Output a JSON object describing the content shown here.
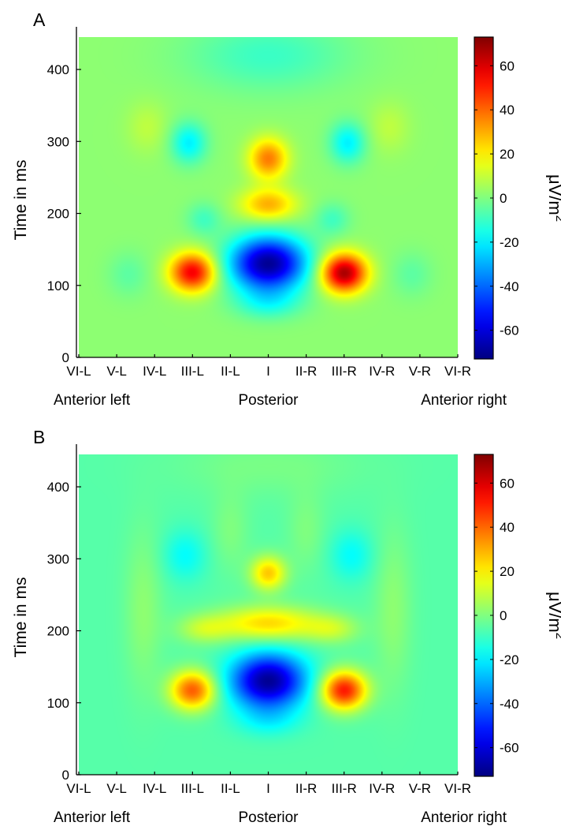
{
  "chart_data": [
    {
      "type": "heatmap",
      "panel_label": "A",
      "ylabel": "Time in ms",
      "x_categories": [
        "VI-L",
        "V-L",
        "IV-L",
        "III-L",
        "II-L",
        "I",
        "II-R",
        "III-R",
        "IV-R",
        "V-R",
        "VI-R"
      ],
      "x_groups": [
        "Anterior left",
        "Posterior",
        "Anterior right"
      ],
      "yticks": [
        0,
        100,
        200,
        300,
        400
      ],
      "ylim": [
        0,
        445
      ],
      "colorbar": {
        "range": [
          -73,
          73
        ],
        "ticks": [
          -60,
          -40,
          -20,
          0,
          20,
          40,
          60
        ],
        "tick_labels": [
          "-60",
          "-40",
          "-20",
          "0",
          "20",
          "40",
          "60"
        ],
        "label_prefix": "μV/m",
        "label_superscript": "2",
        "colormap": "jet"
      },
      "background_value": 2,
      "features": [
        {
          "x": 5.0,
          "t": 130,
          "amp": -72,
          "sx": 0.72,
          "st": 27
        },
        {
          "x": 3.0,
          "t": 118,
          "amp": 55,
          "sx": 0.42,
          "st": 19
        },
        {
          "x": 7.0,
          "t": 117,
          "amp": 66,
          "sx": 0.42,
          "st": 19
        },
        {
          "x": 5.0,
          "t": 276,
          "amp": 35,
          "sx": 0.36,
          "st": 20
        },
        {
          "x": 5.0,
          "t": 212,
          "amp": 28,
          "sx": 0.52,
          "st": 16
        },
        {
          "x": 2.9,
          "t": 298,
          "amp": -22,
          "sx": 0.33,
          "st": 20
        },
        {
          "x": 7.1,
          "t": 298,
          "amp": -22,
          "sx": 0.33,
          "st": 20
        },
        {
          "x": 3.3,
          "t": 192,
          "amp": -11,
          "sx": 0.32,
          "st": 16
        },
        {
          "x": 6.7,
          "t": 192,
          "amp": -11,
          "sx": 0.32,
          "st": 16
        },
        {
          "x": 1.3,
          "t": 115,
          "amp": -7,
          "sx": 0.38,
          "st": 22
        },
        {
          "x": 8.8,
          "t": 115,
          "amp": -7,
          "sx": 0.38,
          "st": 22
        },
        {
          "x": 5.0,
          "t": 75,
          "amp": -14,
          "sx": 0.62,
          "st": 16
        },
        {
          "x": 5.0,
          "t": 420,
          "amp": -12,
          "sx": 1.5,
          "st": 35
        },
        {
          "x": 1.8,
          "t": 320,
          "amp": 7,
          "sx": 0.38,
          "st": 25
        },
        {
          "x": 8.2,
          "t": 320,
          "amp": 7,
          "sx": 0.38,
          "st": 25
        }
      ]
    },
    {
      "type": "heatmap",
      "panel_label": "B",
      "ylabel": "Time in ms",
      "x_categories": [
        "VI-L",
        "V-L",
        "IV-L",
        "III-L",
        "II-L",
        "I",
        "II-R",
        "III-R",
        "IV-R",
        "V-R",
        "VI-R"
      ],
      "x_groups": [
        "Anterior left",
        "Posterior",
        "Anterior right"
      ],
      "yticks": [
        0,
        100,
        200,
        300,
        400
      ],
      "ylim": [
        0,
        445
      ],
      "colorbar": {
        "range": [
          -73,
          73
        ],
        "ticks": [
          -60,
          -40,
          -20,
          0,
          20,
          40,
          60
        ],
        "tick_labels": [
          "-60",
          "-40",
          "-20",
          "0",
          "20",
          "40",
          "60"
        ],
        "label_prefix": "μV/m",
        "label_superscript": "2",
        "colormap": "jet"
      },
      "background_value": -6,
      "features": [
        {
          "x": 5.0,
          "t": 130,
          "amp": -64,
          "sx": 0.7,
          "st": 27
        },
        {
          "x": 3.0,
          "t": 117,
          "amp": 48,
          "sx": 0.42,
          "st": 19
        },
        {
          "x": 7.0,
          "t": 117,
          "amp": 58,
          "sx": 0.42,
          "st": 19
        },
        {
          "x": 5.0,
          "t": 280,
          "amp": 32,
          "sx": 0.33,
          "st": 17
        },
        {
          "x": 5.0,
          "t": 210,
          "amp": 30,
          "sx": 0.95,
          "st": 17
        },
        {
          "x": 3.3,
          "t": 202,
          "amp": 14,
          "sx": 0.5,
          "st": 14
        },
        {
          "x": 6.7,
          "t": 202,
          "amp": 14,
          "sx": 0.5,
          "st": 14
        },
        {
          "x": 2.8,
          "t": 305,
          "amp": -12,
          "sx": 0.4,
          "st": 25
        },
        {
          "x": 7.2,
          "t": 305,
          "amp": -12,
          "sx": 0.4,
          "st": 25
        },
        {
          "x": 1.7,
          "t": 230,
          "amp": 8,
          "sx": 0.35,
          "st": 80
        },
        {
          "x": 8.3,
          "t": 230,
          "amp": 8,
          "sx": 0.35,
          "st": 80
        },
        {
          "x": 4.0,
          "t": 340,
          "amp": 6,
          "sx": 0.35,
          "st": 40
        },
        {
          "x": 6.0,
          "t": 340,
          "amp": 6,
          "sx": 0.35,
          "st": 40
        },
        {
          "x": 5.0,
          "t": 75,
          "amp": -10,
          "sx": 0.6,
          "st": 16
        },
        {
          "x": 5.0,
          "t": 430,
          "amp": 5,
          "sx": 1.8,
          "st": 30
        }
      ]
    }
  ]
}
